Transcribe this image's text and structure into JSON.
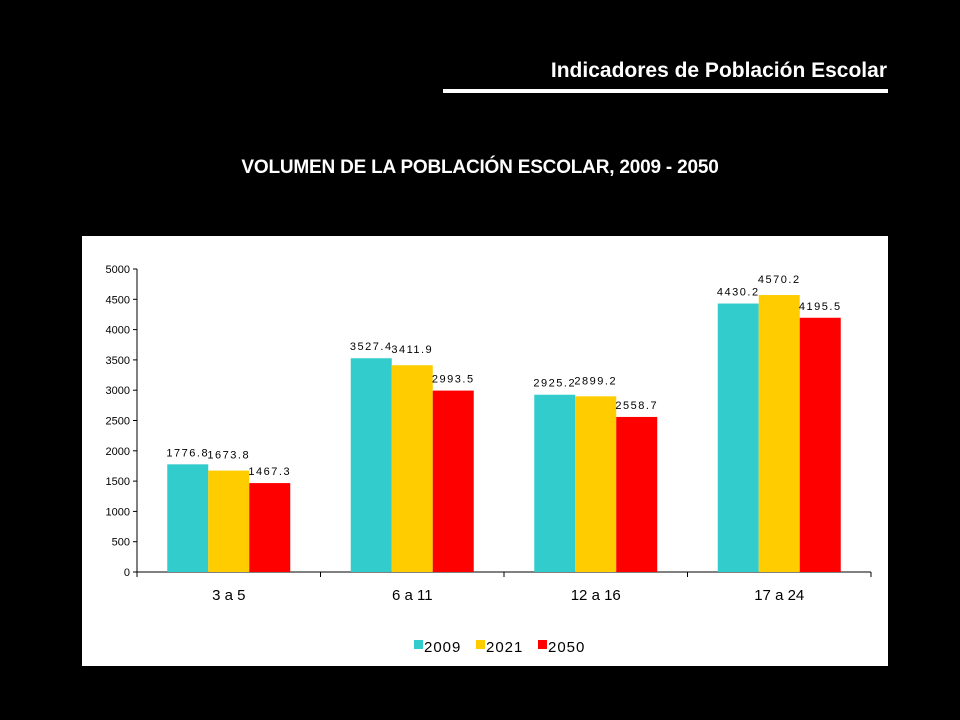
{
  "header": {
    "title": "Indicadores de Población Escolar"
  },
  "chart_data": {
    "type": "bar",
    "title": "VOLUMEN DE LA POBLACIÓN ESCOLAR, 2009 - 2050",
    "categories": [
      "3  a 5",
      "6  a 11",
      "12  a 16",
      "17  a 24"
    ],
    "series": [
      {
        "name": "2009",
        "color": "#33CCCC",
        "values": [
          1776.8,
          3527.4,
          2925.2,
          4430.2
        ]
      },
      {
        "name": "2021",
        "color": "#FFCC00",
        "values": [
          1673.8,
          3411.9,
          2899.2,
          4570.2
        ]
      },
      {
        "name": "2050",
        "color": "#FF0000",
        "values": [
          1467.3,
          2993.5,
          2558.7,
          4195.5
        ]
      }
    ],
    "ylim": [
      0,
      5000
    ],
    "yticks": [
      "0",
      "500",
      "1000",
      "1500",
      "2000",
      "2500",
      "3000",
      "3500",
      "4000",
      "4500",
      "5000"
    ],
    "legend_position": "bottom",
    "grid": false
  }
}
